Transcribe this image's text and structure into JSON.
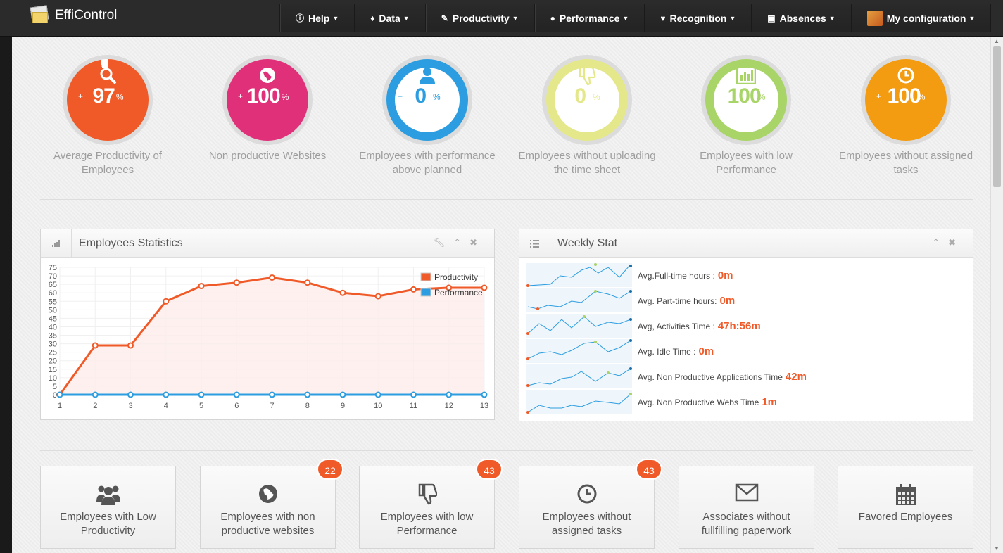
{
  "app": {
    "title": "EffiControl"
  },
  "nav": [
    {
      "icon": "info-icon",
      "label": "Help"
    },
    {
      "icon": "tag-icon",
      "label": "Data"
    },
    {
      "icon": "pencil-icon",
      "label": "Productivity"
    },
    {
      "icon": "user-icon",
      "label": "Performance"
    },
    {
      "icon": "heart-icon",
      "label": "Recognition"
    },
    {
      "icon": "picture-icon",
      "label": "Absences"
    },
    {
      "icon": "avatar-icon",
      "label": "My configuration"
    }
  ],
  "stats": [
    {
      "value": "97",
      "unit": "%",
      "prefix": "+",
      "caption": "Average Productivity of Employees",
      "color": "#f05a28",
      "icon": "search-icon"
    },
    {
      "value": "100",
      "unit": "%",
      "prefix": "+",
      "caption": "Non productive Websites",
      "color": "#e0307a",
      "icon": "globe-icon"
    },
    {
      "value": "0",
      "unit": "%",
      "prefix": "+",
      "caption": "Employees with performance above planned",
      "color": "#2c9de0",
      "icon": "user-icon"
    },
    {
      "value": "0",
      "unit": "%",
      "prefix": "",
      "caption": "Employees without uploading the time sheet",
      "color": "#e4e88a",
      "icon": "thumbs-down-icon"
    },
    {
      "value": "100",
      "unit": "%",
      "prefix": "",
      "caption": "Employees with low Performance",
      "color": "#a8d468",
      "icon": "bar-chart-icon"
    },
    {
      "value": "100",
      "unit": "%",
      "prefix": "+",
      "caption": "Employees without assigned tasks",
      "color": "#f39c12",
      "icon": "clock-icon"
    }
  ],
  "employees_statistics": {
    "title": "Employees Statistics"
  },
  "weekly_stat": {
    "title": "Weekly Stat",
    "rows": [
      {
        "label": "Avg.Full-time hours :",
        "value": "0m"
      },
      {
        "label": "Avg. Part-time hours:",
        "value": "0m"
      },
      {
        "label": "Avg, Activities Time :",
        "value": "47h:56m"
      },
      {
        "label": "Avg. Idle Time :",
        "value": "0m"
      },
      {
        "label": "Avg. Non Productive Applications Time",
        "value": "42m"
      },
      {
        "label": "Avg. Non Productive Webs Time",
        "value": "1m"
      }
    ]
  },
  "tiles": [
    {
      "icon": "group-icon",
      "label": "Employees with Low Productivity",
      "badge": ""
    },
    {
      "icon": "globe-icon",
      "label": "Employees with non productive websites",
      "badge": "22"
    },
    {
      "icon": "thumbs-down-icon",
      "label": "Employees with low Performance",
      "badge": "43"
    },
    {
      "icon": "clock-icon",
      "label": "Employees without assigned tasks",
      "badge": "43"
    },
    {
      "icon": "envelope-icon",
      "label": "Associates without fullfilling paperwork",
      "badge": ""
    },
    {
      "icon": "calendar-icon",
      "label": "Favored Employees",
      "badge": ""
    }
  ],
  "chart_data": {
    "type": "line",
    "title": "",
    "x": [
      1,
      2,
      3,
      4,
      5,
      6,
      7,
      8,
      9,
      10,
      11,
      12,
      13
    ],
    "ylim": [
      0,
      75
    ],
    "yticks": [
      0,
      5,
      10,
      15,
      20,
      25,
      30,
      35,
      40,
      45,
      50,
      55,
      60,
      65,
      70,
      75
    ],
    "legend": "top-right",
    "series": [
      {
        "name": "Productivity",
        "color": "#f05a28",
        "values": [
          0,
          29,
          29,
          55,
          64,
          66,
          69,
          66,
          60,
          58,
          62,
          63,
          63
        ]
      },
      {
        "name": "Performance",
        "color": "#2c9de0",
        "values": [
          0,
          0,
          0,
          0,
          0,
          0,
          0,
          0,
          0,
          0,
          0,
          0,
          0
        ]
      }
    ]
  }
}
